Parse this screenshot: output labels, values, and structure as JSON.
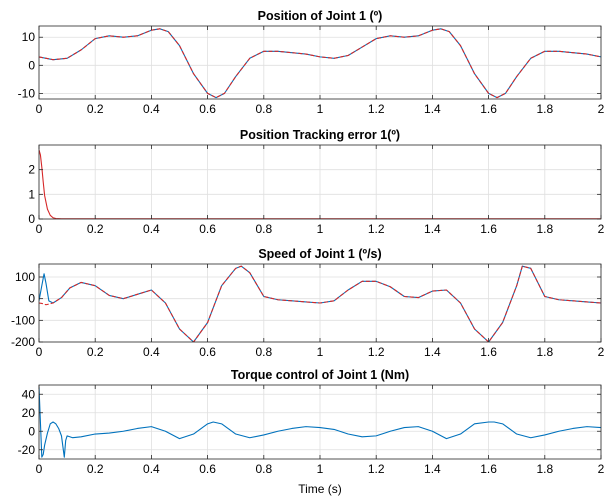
{
  "figure": {
    "xlabel": "Time (s)"
  },
  "colors": {
    "reference": "#0072BD",
    "actual": "#D62728",
    "grid": "#DFDFDF",
    "axes": "#262626",
    "text": "#000000"
  },
  "chart_data": [
    {
      "type": "line",
      "title": "Position of Joint 1 (º)",
      "xlim": [
        0,
        2
      ],
      "ylim": [
        -12,
        14
      ],
      "xticks": [
        0,
        0.2,
        0.4,
        0.6,
        0.8,
        1,
        1.2,
        1.4,
        1.6,
        1.8,
        2
      ],
      "xtick_labels": [
        "0",
        "0.2",
        "0.4",
        "0.6",
        "0.8",
        "1",
        "1.2",
        "1.4",
        "1.6",
        "1.8",
        "2"
      ],
      "yticks": [
        -10,
        0,
        10
      ],
      "ytick_labels": [
        "-10",
        "0",
        "10"
      ],
      "grid": true,
      "series": [
        {
          "role": "reference",
          "color": "#0072BD",
          "x": [
            0,
            0.05,
            0.1,
            0.15,
            0.2,
            0.25,
            0.3,
            0.35,
            0.4,
            0.43,
            0.46,
            0.5,
            0.55,
            0.6,
            0.63,
            0.66,
            0.7,
            0.75,
            0.8,
            0.85,
            0.9,
            0.95,
            1,
            1.05,
            1.1,
            1.15,
            1.2,
            1.25,
            1.3,
            1.35,
            1.4,
            1.43,
            1.46,
            1.5,
            1.55,
            1.6,
            1.63,
            1.66,
            1.7,
            1.75,
            1.8,
            1.85,
            1.9,
            1.95,
            2
          ],
          "y": [
            3,
            2,
            2.5,
            5.5,
            9.5,
            10.5,
            10,
            10.5,
            12.5,
            13,
            12,
            7,
            -3,
            -10,
            -11.5,
            -10,
            -4,
            2.5,
            5,
            5,
            4.5,
            4,
            3,
            2.5,
            3.5,
            6.5,
            9.5,
            10.5,
            10,
            10.5,
            12.5,
            13,
            12,
            7,
            -3,
            -10,
            -11.5,
            -10,
            -4,
            2.5,
            5,
            5,
            4.5,
            4,
            3
          ]
        },
        {
          "role": "actual",
          "color": "#D62728",
          "dashed": true,
          "x": [
            0,
            0.05,
            0.1,
            0.15,
            0.2,
            0.25,
            0.3,
            0.35,
            0.4,
            0.43,
            0.46,
            0.5,
            0.55,
            0.6,
            0.63,
            0.66,
            0.7,
            0.75,
            0.8,
            0.85,
            0.9,
            0.95,
            1,
            1.05,
            1.1,
            1.15,
            1.2,
            1.25,
            1.3,
            1.35,
            1.4,
            1.43,
            1.46,
            1.5,
            1.55,
            1.6,
            1.63,
            1.66,
            1.7,
            1.75,
            1.8,
            1.85,
            1.9,
            1.95,
            2
          ],
          "y": [
            3,
            2,
            2.5,
            5.5,
            9.5,
            10.5,
            10,
            10.5,
            12.5,
            13,
            12,
            7,
            -3,
            -10,
            -11.5,
            -10,
            -4,
            2.5,
            5,
            5,
            4.5,
            4,
            3,
            2.5,
            3.5,
            6.5,
            9.5,
            10.5,
            10,
            10.5,
            12.5,
            13,
            12,
            7,
            -3,
            -10,
            -11.5,
            -10,
            -4,
            2.5,
            5,
            5,
            4.5,
            4,
            3
          ]
        }
      ]
    },
    {
      "type": "line",
      "title": "Position Tracking error 1(º)",
      "xlim": [
        0,
        2
      ],
      "ylim": [
        0,
        3
      ],
      "xticks": [
        0,
        0.2,
        0.4,
        0.6,
        0.8,
        1,
        1.2,
        1.4,
        1.6,
        1.8,
        2
      ],
      "xtick_labels": [
        "0",
        "0.2",
        "0.4",
        "0.6",
        "0.8",
        "1",
        "1.2",
        "1.4",
        "1.6",
        "1.8",
        "2"
      ],
      "yticks": [
        0,
        1,
        2
      ],
      "ytick_labels": [
        "0",
        "1",
        "2"
      ],
      "grid": true,
      "series": [
        {
          "role": "actual",
          "color": "#D62728",
          "x": [
            0,
            0.005,
            0.01,
            0.015,
            0.02,
            0.03,
            0.04,
            0.05,
            0.06,
            0.08,
            0.1,
            0.2,
            0.4,
            0.6,
            0.8,
            1,
            1.2,
            1.4,
            1.6,
            1.8,
            2
          ],
          "y": [
            2.8,
            2.6,
            2.1,
            1.5,
            0.95,
            0.4,
            0.15,
            0.05,
            0.02,
            0.01,
            0.01,
            0.01,
            0.01,
            0.01,
            0.01,
            0.01,
            0.01,
            0.01,
            0.01,
            0.01,
            0.01
          ]
        }
      ]
    },
    {
      "type": "line",
      "title": "Speed of Joint 1 (º/s)",
      "xlim": [
        0,
        2
      ],
      "ylim": [
        -200,
        160
      ],
      "xticks": [
        0,
        0.2,
        0.4,
        0.6,
        0.8,
        1,
        1.2,
        1.4,
        1.6,
        1.8,
        2
      ],
      "xtick_labels": [
        "0",
        "0.2",
        "0.4",
        "0.6",
        "0.8",
        "1",
        "1.2",
        "1.4",
        "1.6",
        "1.8",
        "2"
      ],
      "yticks": [
        -200,
        -100,
        0,
        100
      ],
      "ytick_labels": [
        "-200",
        "-100",
        "0",
        "100"
      ],
      "grid": true,
      "series": [
        {
          "role": "reference",
          "color": "#0072BD",
          "x": [
            0,
            0.01,
            0.018,
            0.025,
            0.035,
            0.05,
            0.08,
            0.11,
            0.15,
            0.2,
            0.25,
            0.3,
            0.35,
            0.4,
            0.45,
            0.5,
            0.55,
            0.6,
            0.65,
            0.7,
            0.72,
            0.75,
            0.8,
            0.85,
            0.9,
            0.95,
            1,
            1.05,
            1.1,
            1.15,
            1.2,
            1.25,
            1.3,
            1.35,
            1.4,
            1.45,
            1.5,
            1.55,
            1.6,
            1.65,
            1.7,
            1.72,
            1.75,
            1.8,
            1.85,
            1.9,
            1.95,
            2
          ],
          "y": [
            -10,
            60,
            115,
            70,
            -10,
            -20,
            5,
            50,
            75,
            60,
            15,
            0,
            20,
            40,
            -20,
            -140,
            -200,
            -110,
            60,
            140,
            150,
            120,
            10,
            -5,
            -10,
            -15,
            -20,
            -10,
            40,
            80,
            80,
            55,
            10,
            5,
            35,
            40,
            -20,
            -140,
            -200,
            -110,
            60,
            150,
            140,
            10,
            -5,
            -10,
            -15,
            -20
          ]
        },
        {
          "role": "actual",
          "color": "#D62728",
          "dashed": true,
          "x": [
            0,
            0.01,
            0.018,
            0.025,
            0.035,
            0.05,
            0.08,
            0.11,
            0.15,
            0.2,
            0.25,
            0.3,
            0.35,
            0.4,
            0.45,
            0.5,
            0.55,
            0.6,
            0.65,
            0.7,
            0.72,
            0.75,
            0.8,
            0.85,
            0.9,
            0.95,
            1,
            1.05,
            1.1,
            1.15,
            1.2,
            1.25,
            1.3,
            1.35,
            1.4,
            1.45,
            1.5,
            1.55,
            1.6,
            1.65,
            1.7,
            1.72,
            1.75,
            1.8,
            1.85,
            1.9,
            1.95,
            2
          ],
          "y": [
            -20,
            -22,
            -25,
            -28,
            -25,
            -20,
            5,
            50,
            75,
            60,
            15,
            0,
            20,
            40,
            -20,
            -140,
            -200,
            -110,
            60,
            140,
            150,
            120,
            10,
            -5,
            -10,
            -15,
            -20,
            -10,
            40,
            80,
            80,
            55,
            10,
            5,
            35,
            40,
            -20,
            -140,
            -200,
            -110,
            60,
            150,
            140,
            10,
            -5,
            -10,
            -15,
            -20
          ]
        }
      ]
    },
    {
      "type": "line",
      "title": "Torque control of Joint 1 (Nm)",
      "xlim": [
        0,
        2
      ],
      "ylim": [
        -30,
        50
      ],
      "xticks": [
        0,
        0.2,
        0.4,
        0.6,
        0.8,
        1,
        1.2,
        1.4,
        1.6,
        1.8,
        2
      ],
      "xtick_labels": [
        "0",
        "0.2",
        "0.4",
        "0.6",
        "0.8",
        "1",
        "1.2",
        "1.4",
        "1.6",
        "1.8",
        "2"
      ],
      "yticks": [
        -20,
        0,
        20,
        40
      ],
      "ytick_labels": [
        "-20",
        "0",
        "20",
        "40"
      ],
      "grid": true,
      "series": [
        {
          "role": "reference",
          "color": "#0072BD",
          "x": [
            0,
            0.005,
            0.01,
            0.015,
            0.02,
            0.03,
            0.04,
            0.05,
            0.06,
            0.07,
            0.08,
            0.09,
            0.095,
            0.1,
            0.12,
            0.15,
            0.2,
            0.25,
            0.3,
            0.35,
            0.4,
            0.45,
            0.5,
            0.55,
            0.6,
            0.62,
            0.65,
            0.7,
            0.75,
            0.8,
            0.85,
            0.9,
            0.95,
            1,
            1.05,
            1.1,
            1.15,
            1.2,
            1.25,
            1.3,
            1.35,
            1.4,
            1.45,
            1.5,
            1.55,
            1.6,
            1.62,
            1.65,
            1.7,
            1.75,
            1.8,
            1.85,
            1.9,
            1.95,
            2
          ],
          "y": [
            48,
            10,
            -28,
            -25,
            -15,
            -2,
            8,
            10,
            8,
            3,
            -5,
            -28,
            -10,
            -5,
            -7,
            -6,
            -3,
            -2,
            0,
            3,
            5,
            0,
            -8,
            -3,
            8,
            10,
            8,
            -3,
            -7,
            -4,
            0,
            3,
            5,
            4,
            2,
            -3,
            -6,
            -5,
            0,
            4,
            5,
            0,
            -8,
            -3,
            8,
            10,
            10,
            8,
            -3,
            -7,
            -4,
            0,
            3,
            5,
            4
          ]
        }
      ]
    }
  ]
}
